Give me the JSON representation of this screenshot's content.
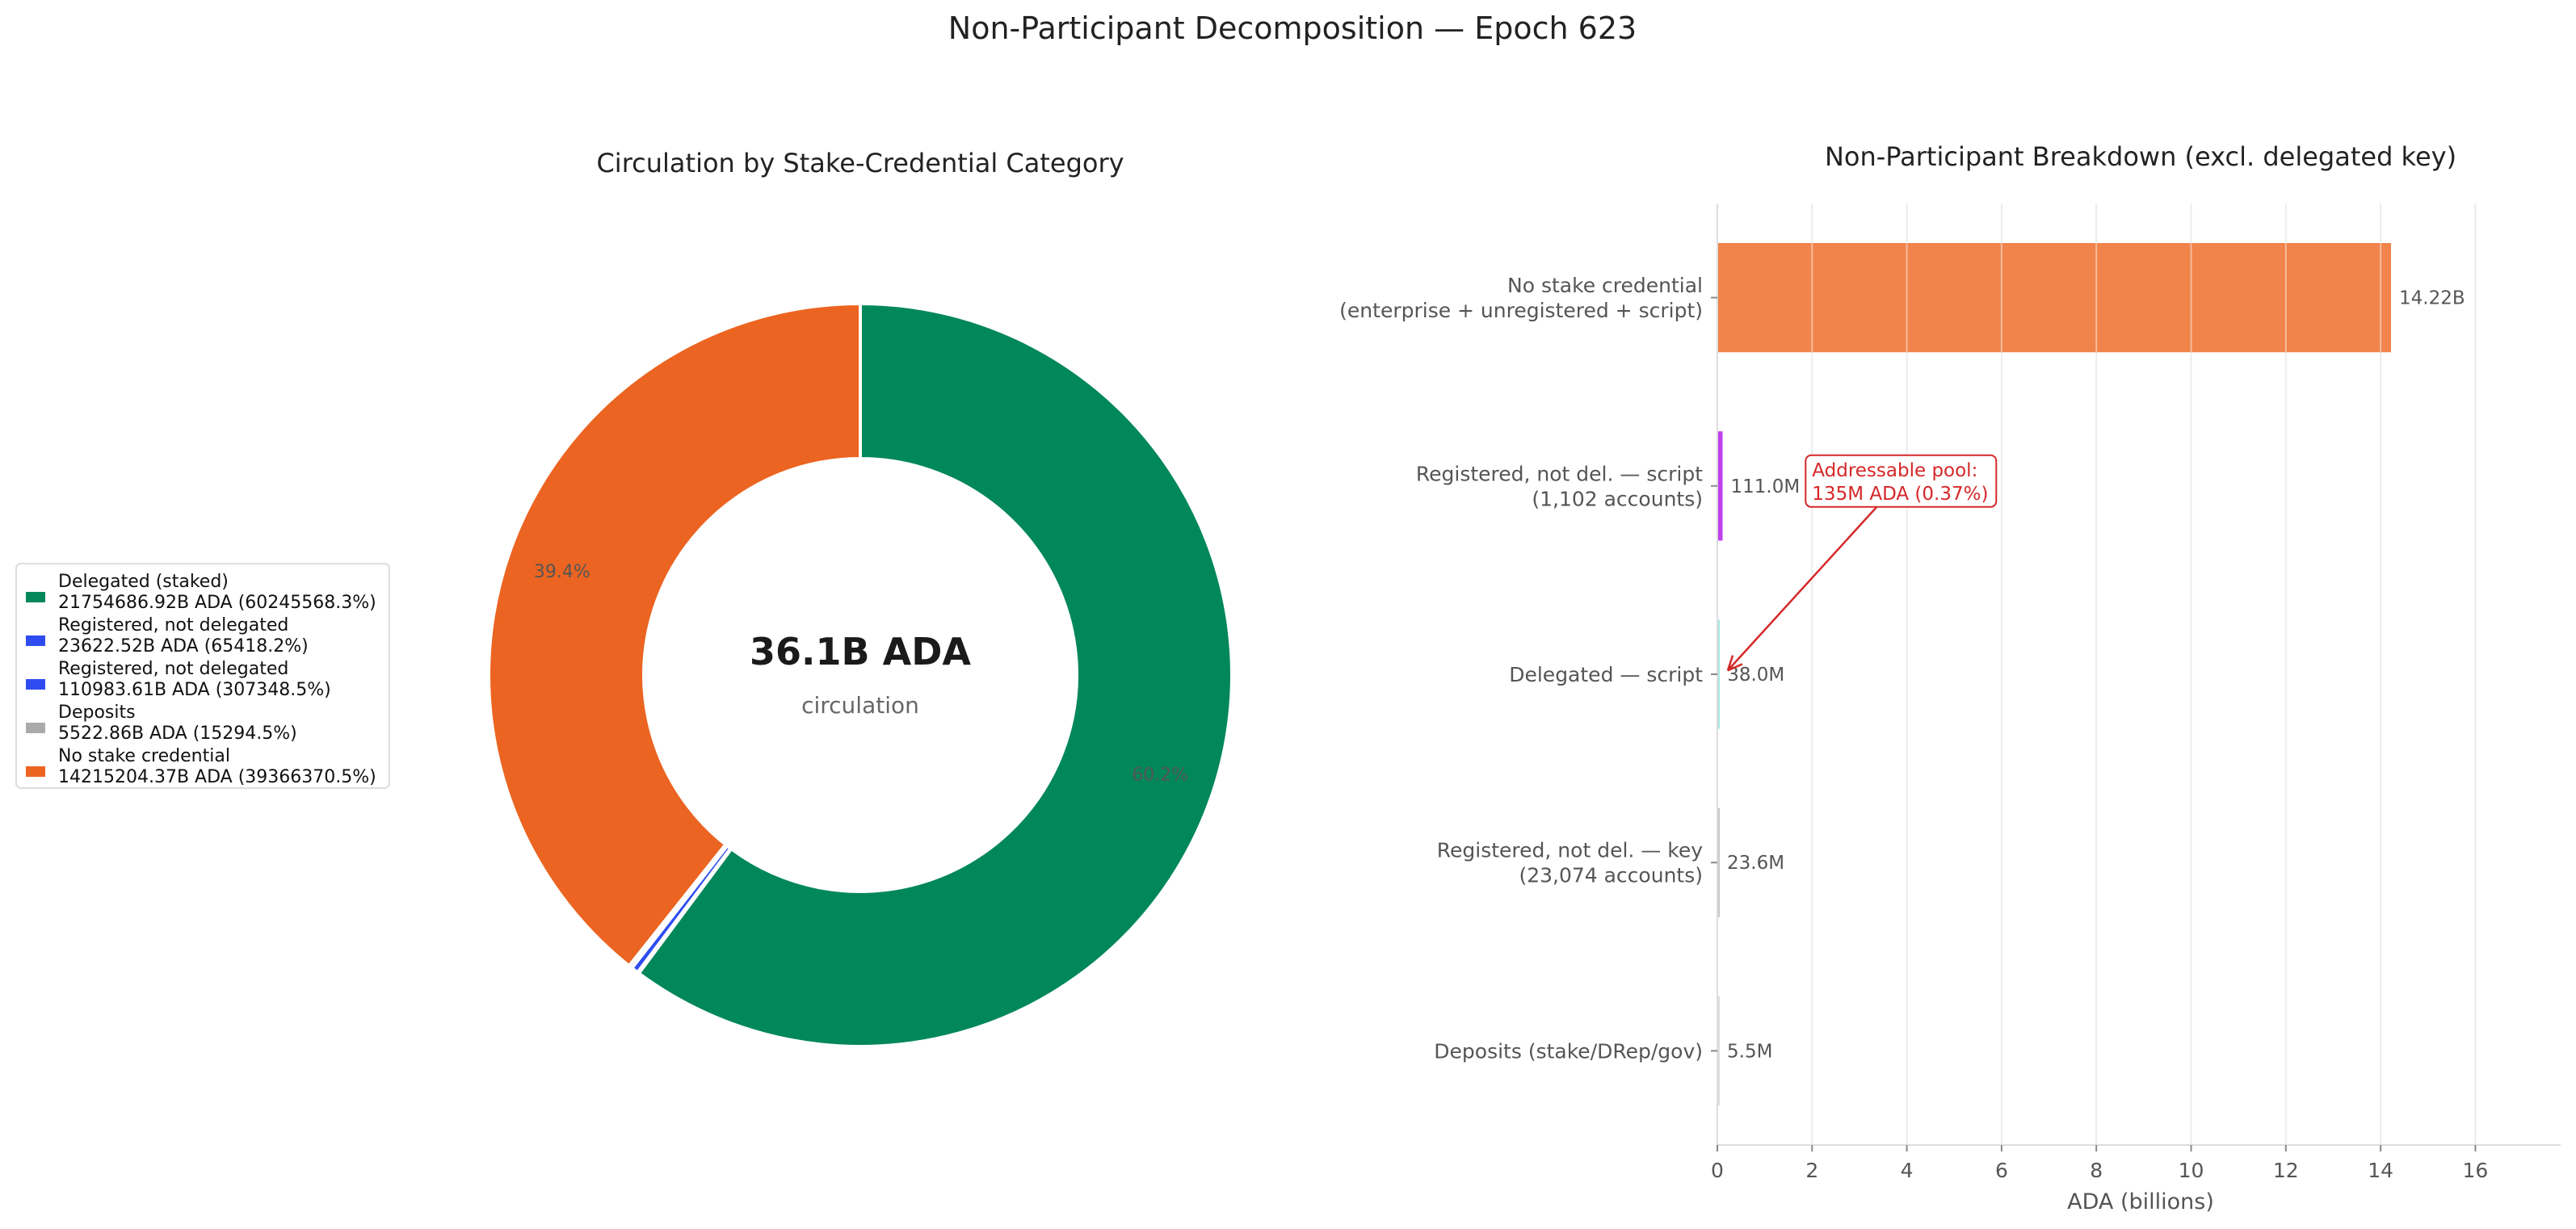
{
  "figure": {
    "suptitle": "Non-Participant Decomposition — Epoch 623"
  },
  "chart_data": [
    {
      "type": "pie",
      "variant": "donut",
      "title": "Circulation by Stake-Credential Category",
      "center_value": "36.1B ADA",
      "center_label": "circulation",
      "legend_position": "left",
      "start_angle_deg": 90,
      "direction": "clockwise",
      "slices": [
        {
          "name": "Delegated (staked)",
          "detail": "21754686.92B ADA (60245568.3%)",
          "fraction": 0.6025,
          "pct_label": "60.2%",
          "color": "#00875a"
        },
        {
          "name": "Registered, not delegated",
          "detail": "23622.52B ADA (65418.2%)",
          "fraction": 0.00065,
          "pct_label": "",
          "color": "#2f4cf0"
        },
        {
          "name": "Registered, not delegated",
          "detail": "110983.61B ADA (307348.5%)",
          "fraction": 0.00307,
          "pct_label": "",
          "color": "#2f4cf0"
        },
        {
          "name": "Deposits",
          "detail": "5522.86B ADA (15294.5%)",
          "fraction": 0.00153,
          "pct_label": "",
          "color": "#aaaaaa"
        },
        {
          "name": "No stake credential",
          "detail": "14215204.37B ADA (39366370.5%)",
          "fraction": 0.3937,
          "pct_label": "39.4%",
          "color": "#ec6421"
        }
      ]
    },
    {
      "type": "bar",
      "orientation": "horizontal",
      "title": "Non-Participant Breakdown (excl. delegated key)",
      "xlabel": "ADA (billions)",
      "xlim": [
        0,
        17.8
      ],
      "xticks": [
        0,
        2,
        4,
        6,
        8,
        10,
        12,
        14,
        16
      ],
      "grid": "vertical",
      "categories": [
        [
          "No stake credential",
          "(enterprise + unregistered + script)"
        ],
        [
          "Registered, not del. — script",
          "(1,102 accounts)"
        ],
        [
          "Delegated — script"
        ],
        [
          "Registered, not del. — key",
          "(23,074 accounts)"
        ],
        [
          "Deposits (stake/DRep/gov)"
        ]
      ],
      "values": [
        14.22,
        0.111,
        0.038,
        0.0236,
        0.0055
      ],
      "value_labels": [
        "14.22B",
        "111.0M",
        "38.0M",
        "23.6M",
        "5.5M"
      ],
      "colors": [
        "#f0844a",
        "#c040f0",
        "#a8e8e0",
        "#c8c8c8",
        "#dddddd"
      ],
      "annotation": {
        "lines": [
          "Addressable pool:",
          "135M ADA (0.37%)"
        ],
        "color": "#d62728",
        "text_at": {
          "x": 2.0,
          "category_index": 1.5
        },
        "arrow_to": {
          "x": 0.22,
          "category_index": 2.48
        }
      }
    }
  ]
}
